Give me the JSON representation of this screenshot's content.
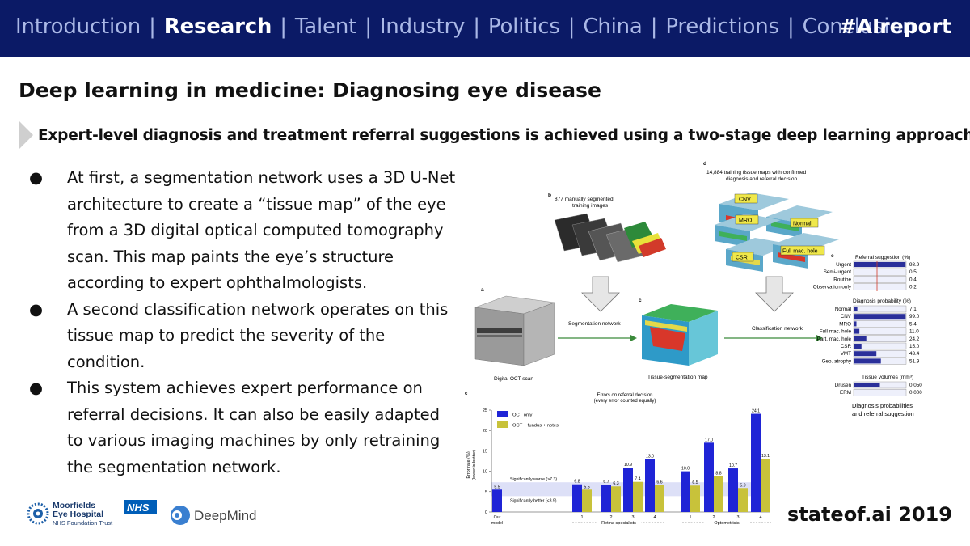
{
  "nav": {
    "items": [
      {
        "label": "Introduction",
        "active": false
      },
      {
        "label": "Research",
        "active": true
      },
      {
        "label": "Talent",
        "active": false
      },
      {
        "label": "Industry",
        "active": false
      },
      {
        "label": "Politics",
        "active": false
      },
      {
        "label": "China",
        "active": false
      },
      {
        "label": "Predictions",
        "active": false
      },
      {
        "label": "Conclusion",
        "active": false
      }
    ],
    "separator": "|",
    "hashtag": "#AIreport"
  },
  "slide": {
    "title": "Deep learning in medicine: Diagnosing eye disease",
    "subtitle": "Expert-level diagnosis and treatment referral suggestions is achieved using a two-stage deep learning approach.",
    "bullets": [
      "At first, a segmentation network uses a 3D U-Net architecture to create a “tissue map” of the eye from a 3D digital optical computed tomography scan. This map paints the eye’s structure according to expert ophthalmologists.",
      "A second classification network operates on this tissue map to predict the severity of the condition.",
      "This system achieves expert performance on referral decisions. It can also be easily adapted to various imaging machines by only retraining the segmentation network."
    ],
    "bullet_glyph": "●"
  },
  "figure": {
    "panel_a": {
      "letter": "a",
      "caption": "Digital OCT scan"
    },
    "panel_b": {
      "letter": "b",
      "text_line1": "877 manually segmented",
      "text_line2": "training images"
    },
    "panel_c": {
      "letter": "c",
      "caption": "Tissue-segmentation map"
    },
    "panel_d": {
      "letter": "d",
      "text_line1": "14,884 training tissue maps with confirmed",
      "text_line2": "diagnosis and referral decision",
      "labels": [
        "CNV",
        "MRO",
        "Normal",
        "CSR",
        "Full mac. hole"
      ]
    },
    "arrows": {
      "segmentation": "Segmentation network",
      "classification": "Classification network"
    },
    "panel_e": {
      "letter": "e",
      "referral_header": "Referral suggestion (%)",
      "referral": [
        {
          "label": "Urgent",
          "value": "98.9"
        },
        {
          "label": "Semi-urgent",
          "value": "0.5"
        },
        {
          "label": "Routine",
          "value": "0.4"
        },
        {
          "label": "Observation only",
          "value": "0.2"
        }
      ],
      "diagnosis_header": "Diagnosis probability (%)",
      "diagnosis": [
        {
          "label": "Normal",
          "value": "7.1"
        },
        {
          "label": "CNV",
          "value": "99.0"
        },
        {
          "label": "MRO",
          "value": "5.4"
        },
        {
          "label": "Full mac. hole",
          "value": "11.0"
        },
        {
          "label": "Part. mac. hole",
          "value": "24.2"
        },
        {
          "label": "CSR",
          "value": "15.0"
        },
        {
          "label": "VMT",
          "value": "43.4"
        },
        {
          "label": "Geo. atrophy",
          "value": "51.9"
        }
      ],
      "volume_header": "Tissue volumes (mm³)",
      "volumes": [
        {
          "label": "Drusen",
          "value": "0.050"
        },
        {
          "label": "ERM",
          "value": "0.000"
        }
      ],
      "footer_line1": "Diagnosis probabilities",
      "footer_line2": "and referral suggestion"
    }
  },
  "chart_data": {
    "type": "bar",
    "letter": "c",
    "title": "Errors on referral decision",
    "subtitle": "(every error counted equally)",
    "ylabel": "Error rate (%)",
    "ylabel2": "(lower is better)",
    "ylim": [
      0,
      25
    ],
    "yticks": [
      "0",
      "5",
      "10",
      "15",
      "20",
      "25"
    ],
    "categories": [
      "Our model",
      "1",
      "2",
      "3",
      "4",
      "1",
      "2",
      "3",
      "4"
    ],
    "group_labels": [
      "Retina specialists",
      "Optometrists"
    ],
    "series": [
      {
        "name": "OCT only",
        "color": "#1f24d6",
        "values": [
          5.5,
          6.8,
          6.7,
          10.9,
          13.0,
          10.0,
          17.0,
          10.7,
          24.1
        ],
        "labels": [
          "5.5",
          "6.8",
          "6.7",
          "10.9",
          "13.0",
          "10.0",
          "17.0",
          "10.7",
          "24.1"
        ]
      },
      {
        "name": "OCT + fundus + notes",
        "color": "#c8c23a",
        "values": [
          null,
          5.5,
          6.3,
          7.4,
          6.6,
          6.5,
          8.8,
          5.9,
          13.1
        ],
        "labels": [
          "",
          "5.5",
          "6.3",
          "7.4",
          "6.6",
          "6.5",
          "8.8",
          "5.9",
          "13.1"
        ]
      }
    ],
    "band": {
      "low": 3.9,
      "high": 7.3,
      "upper_label": "Significantly worse (>7.3)",
      "lower_label": "Significantly better (<3.9)"
    }
  },
  "logos": {
    "moorfields_line1": "Moorfields",
    "moorfields_line2": "Eye Hospital",
    "moorfields_line3": "NHS Foundation Trust",
    "nhs": "NHS",
    "deepmind": "DeepMind"
  },
  "footer": {
    "brand": "stateof.ai 2019"
  },
  "colors": {
    "topbar": "#0b1a66",
    "nav_inactive": "#aab8e6",
    "accent": "#1f24d6",
    "secondary": "#c8c23a"
  }
}
